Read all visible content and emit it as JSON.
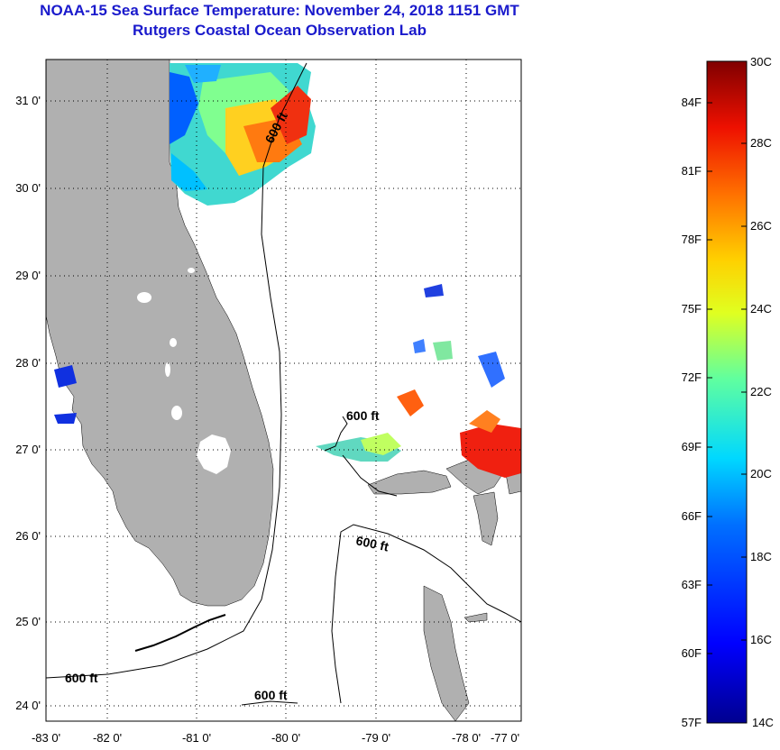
{
  "header": {
    "title_line1": "NOAA-15 Sea Surface Temperature:  November 24, 2018 1151 GMT",
    "title_line2": "Rutgers Coastal Ocean Observation Lab"
  },
  "map": {
    "lat_labels": [
      "31 0'",
      "30 0'",
      "29 0'",
      "28 0'",
      "27 0'",
      "26 0'",
      "25 0'",
      "24 0'"
    ],
    "lon_labels": [
      "-83 0'",
      "-82 0'",
      "-81 0'",
      "-80 0'",
      "-79 0'",
      "-78 0'",
      "-77 0'"
    ],
    "isobath_labels": [
      "600 ft",
      "600 ft",
      "600 ft",
      "600 ft",
      "600 ft"
    ]
  },
  "colorbar": {
    "fahrenheit_labels": [
      "84F",
      "81F",
      "78F",
      "75F",
      "72F",
      "69F",
      "66F",
      "63F",
      "60F",
      "57F"
    ],
    "celsius_labels": [
      "30C",
      "28C",
      "26C",
      "24C",
      "22C",
      "20C",
      "18C",
      "16C",
      "14C"
    ]
  },
  "colors": {
    "title": "#1a1acc",
    "land": "#b0b0b0",
    "scale": [
      "#0000a0",
      "#0000ff",
      "#0080ff",
      "#00ffff",
      "#80ff80",
      "#ffff00",
      "#ff8000",
      "#ff0000",
      "#800000"
    ]
  }
}
